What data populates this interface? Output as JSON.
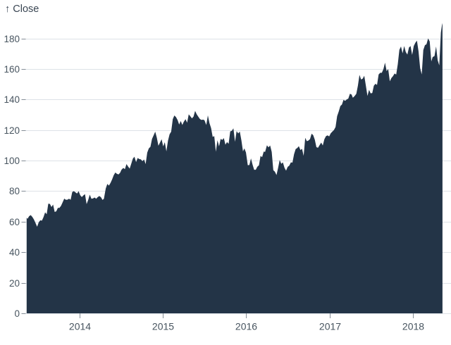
{
  "colors": {
    "background": "#ffffff",
    "area_fill": "#233447",
    "gridline": "#dde2e7",
    "tick_mark": "#848d96",
    "tick_text": "#47545f",
    "title_text": "#3a4653"
  },
  "chart_data": {
    "type": "area",
    "title": "↑ Close",
    "xlabel": "",
    "ylabel": "Close",
    "legend": "none",
    "grid": "horizontal",
    "ylim": [
      0,
      190
    ],
    "y_ticks": [
      0,
      20,
      40,
      60,
      80,
      100,
      120,
      140,
      160,
      180
    ],
    "x_ticks": [
      2014,
      2015,
      2016,
      2017,
      2018
    ],
    "x_domain": [
      "2013-05-13",
      "2018-05-11"
    ],
    "series": [
      {
        "name": "Close",
        "points": [
          [
            "2013-05-13",
            62.6
          ],
          [
            "2013-05-17",
            61.9
          ],
          [
            "2013-05-24",
            63.6
          ],
          [
            "2013-05-31",
            64.3
          ],
          [
            "2013-06-07",
            63.1
          ],
          [
            "2013-06-14",
            61.4
          ],
          [
            "2013-06-21",
            59.1
          ],
          [
            "2013-06-28",
            56.7
          ],
          [
            "2013-07-05",
            59.6
          ],
          [
            "2013-07-12",
            60.9
          ],
          [
            "2013-07-19",
            60.7
          ],
          [
            "2013-07-26",
            63.0
          ],
          [
            "2013-08-02",
            66.1
          ],
          [
            "2013-08-09",
            64.9
          ],
          [
            "2013-08-16",
            71.8
          ],
          [
            "2013-08-23",
            71.6
          ],
          [
            "2013-08-30",
            69.6
          ],
          [
            "2013-09-06",
            71.2
          ],
          [
            "2013-09-13",
            66.4
          ],
          [
            "2013-09-20",
            66.8
          ],
          [
            "2013-09-27",
            69.0
          ],
          [
            "2013-10-04",
            69.0
          ],
          [
            "2013-10-11",
            70.4
          ],
          [
            "2013-10-18",
            72.7
          ],
          [
            "2013-10-25",
            75.1
          ],
          [
            "2013-11-01",
            74.3
          ],
          [
            "2013-11-08",
            74.4
          ],
          [
            "2013-11-15",
            75.0
          ],
          [
            "2013-11-22",
            74.3
          ],
          [
            "2013-11-29",
            79.4
          ],
          [
            "2013-12-06",
            80.0
          ],
          [
            "2013-12-13",
            79.2
          ],
          [
            "2013-12-20",
            78.4
          ],
          [
            "2013-12-27",
            80.0
          ],
          [
            "2014-01-03",
            77.3
          ],
          [
            "2014-01-10",
            76.1
          ],
          [
            "2014-01-17",
            77.2
          ],
          [
            "2014-01-24",
            78.0
          ],
          [
            "2014-01-31",
            71.5
          ],
          [
            "2014-02-07",
            74.2
          ],
          [
            "2014-02-14",
            77.7
          ],
          [
            "2014-02-21",
            75.0
          ],
          [
            "2014-02-28",
            75.2
          ],
          [
            "2014-03-07",
            75.8
          ],
          [
            "2014-03-14",
            75.0
          ],
          [
            "2014-03-21",
            76.1
          ],
          [
            "2014-03-28",
            76.8
          ],
          [
            "2014-04-04",
            76.0
          ],
          [
            "2014-04-11",
            74.2
          ],
          [
            "2014-04-17",
            75.0
          ],
          [
            "2014-04-25",
            81.7
          ],
          [
            "2014-05-02",
            84.7
          ],
          [
            "2014-05-09",
            83.6
          ],
          [
            "2014-05-16",
            85.4
          ],
          [
            "2014-05-23",
            87.7
          ],
          [
            "2014-05-30",
            90.4
          ],
          [
            "2014-06-06",
            92.2
          ],
          [
            "2014-06-13",
            91.3
          ],
          [
            "2014-06-20",
            90.9
          ],
          [
            "2014-06-27",
            92.0
          ],
          [
            "2014-07-03",
            94.0
          ],
          [
            "2014-07-11",
            95.2
          ],
          [
            "2014-07-18",
            94.4
          ],
          [
            "2014-07-25",
            97.7
          ],
          [
            "2014-08-01",
            96.1
          ],
          [
            "2014-08-08",
            94.7
          ],
          [
            "2014-08-15",
            98.0
          ],
          [
            "2014-08-22",
            101.3
          ],
          [
            "2014-08-29",
            102.5
          ],
          [
            "2014-09-05",
            99.0
          ],
          [
            "2014-09-12",
            101.7
          ],
          [
            "2014-09-19",
            101.0
          ],
          [
            "2014-09-26",
            100.8
          ],
          [
            "2014-10-03",
            99.6
          ],
          [
            "2014-10-10",
            100.7
          ],
          [
            "2014-10-17",
            97.7
          ],
          [
            "2014-10-24",
            105.2
          ],
          [
            "2014-10-31",
            108.0
          ],
          [
            "2014-11-07",
            109.0
          ],
          [
            "2014-11-14",
            114.2
          ],
          [
            "2014-11-21",
            116.5
          ],
          [
            "2014-11-28",
            118.9
          ],
          [
            "2014-12-05",
            115.0
          ],
          [
            "2014-12-12",
            109.7
          ],
          [
            "2014-12-19",
            111.8
          ],
          [
            "2014-12-26",
            114.0
          ],
          [
            "2015-01-02",
            109.3
          ],
          [
            "2015-01-09",
            112.0
          ],
          [
            "2015-01-16",
            106.0
          ],
          [
            "2015-01-23",
            113.0
          ],
          [
            "2015-01-30",
            117.2
          ],
          [
            "2015-02-06",
            118.9
          ],
          [
            "2015-02-13",
            127.1
          ],
          [
            "2015-02-20",
            129.5
          ],
          [
            "2015-02-27",
            128.5
          ],
          [
            "2015-03-06",
            126.6
          ],
          [
            "2015-03-13",
            123.6
          ],
          [
            "2015-03-20",
            125.9
          ],
          [
            "2015-03-27",
            123.3
          ],
          [
            "2015-04-02",
            125.3
          ],
          [
            "2015-04-10",
            127.1
          ],
          [
            "2015-04-17",
            124.8
          ],
          [
            "2015-04-24",
            130.3
          ],
          [
            "2015-05-01",
            129.0
          ],
          [
            "2015-05-08",
            127.6
          ],
          [
            "2015-05-15",
            128.8
          ],
          [
            "2015-05-22",
            132.5
          ],
          [
            "2015-05-29",
            130.3
          ],
          [
            "2015-06-05",
            128.7
          ],
          [
            "2015-06-12",
            127.2
          ],
          [
            "2015-06-19",
            126.6
          ],
          [
            "2015-06-26",
            126.8
          ],
          [
            "2015-07-02",
            126.4
          ],
          [
            "2015-07-10",
            123.3
          ],
          [
            "2015-07-17",
            129.6
          ],
          [
            "2015-07-24",
            124.5
          ],
          [
            "2015-07-31",
            121.3
          ],
          [
            "2015-08-07",
            115.5
          ],
          [
            "2015-08-14",
            116.0
          ],
          [
            "2015-08-21",
            105.8
          ],
          [
            "2015-08-28",
            113.3
          ],
          [
            "2015-09-04",
            109.3
          ],
          [
            "2015-09-11",
            114.2
          ],
          [
            "2015-09-18",
            113.5
          ],
          [
            "2015-09-25",
            114.7
          ],
          [
            "2015-10-02",
            110.4
          ],
          [
            "2015-10-09",
            112.1
          ],
          [
            "2015-10-16",
            111.0
          ],
          [
            "2015-10-23",
            119.1
          ],
          [
            "2015-10-30",
            119.5
          ],
          [
            "2015-11-06",
            121.1
          ],
          [
            "2015-11-13",
            112.3
          ],
          [
            "2015-11-20",
            119.3
          ],
          [
            "2015-11-27",
            117.8
          ],
          [
            "2015-12-04",
            119.0
          ],
          [
            "2015-12-11",
            113.2
          ],
          [
            "2015-12-18",
            106.0
          ],
          [
            "2015-12-24",
            108.0
          ],
          [
            "2015-12-31",
            105.3
          ],
          [
            "2016-01-08",
            97.0
          ],
          [
            "2016-01-15",
            97.1
          ],
          [
            "2016-01-22",
            101.4
          ],
          [
            "2016-01-29",
            97.3
          ],
          [
            "2016-02-05",
            94.0
          ],
          [
            "2016-02-12",
            94.0
          ],
          [
            "2016-02-19",
            96.0
          ],
          [
            "2016-02-26",
            96.9
          ],
          [
            "2016-03-04",
            103.0
          ],
          [
            "2016-03-11",
            102.3
          ],
          [
            "2016-03-18",
            105.9
          ],
          [
            "2016-03-24",
            105.7
          ],
          [
            "2016-04-01",
            110.0
          ],
          [
            "2016-04-08",
            108.7
          ],
          [
            "2016-04-15",
            109.9
          ],
          [
            "2016-04-22",
            105.7
          ],
          [
            "2016-04-29",
            93.7
          ],
          [
            "2016-05-06",
            92.7
          ],
          [
            "2016-05-13",
            90.5
          ],
          [
            "2016-05-20",
            95.2
          ],
          [
            "2016-05-27",
            100.4
          ],
          [
            "2016-06-03",
            97.9
          ],
          [
            "2016-06-10",
            98.8
          ],
          [
            "2016-06-17",
            95.3
          ],
          [
            "2016-06-24",
            93.4
          ],
          [
            "2016-07-01",
            95.9
          ],
          [
            "2016-07-08",
            96.7
          ],
          [
            "2016-07-15",
            98.8
          ],
          [
            "2016-07-22",
            98.7
          ],
          [
            "2016-07-29",
            104.2
          ],
          [
            "2016-08-05",
            107.5
          ],
          [
            "2016-08-12",
            108.2
          ],
          [
            "2016-08-19",
            109.4
          ],
          [
            "2016-08-26",
            106.9
          ],
          [
            "2016-09-02",
            107.7
          ],
          [
            "2016-09-09",
            103.1
          ],
          [
            "2016-09-16",
            114.9
          ],
          [
            "2016-09-23",
            112.7
          ],
          [
            "2016-09-30",
            113.1
          ],
          [
            "2016-10-07",
            114.1
          ],
          [
            "2016-10-14",
            117.6
          ],
          [
            "2016-10-21",
            116.6
          ],
          [
            "2016-10-28",
            113.7
          ],
          [
            "2016-11-04",
            108.8
          ],
          [
            "2016-11-11",
            108.4
          ],
          [
            "2016-11-18",
            110.1
          ],
          [
            "2016-11-25",
            111.8
          ],
          [
            "2016-12-02",
            109.9
          ],
          [
            "2016-12-09",
            114.0
          ],
          [
            "2016-12-16",
            116.0
          ],
          [
            "2016-12-23",
            116.5
          ],
          [
            "2016-12-30",
            115.8
          ],
          [
            "2017-01-06",
            117.9
          ],
          [
            "2017-01-13",
            119.0
          ],
          [
            "2017-01-20",
            120.0
          ],
          [
            "2017-01-27",
            122.0
          ],
          [
            "2017-02-03",
            129.1
          ],
          [
            "2017-02-10",
            132.1
          ],
          [
            "2017-02-17",
            135.7
          ],
          [
            "2017-02-24",
            136.7
          ],
          [
            "2017-03-03",
            139.8
          ],
          [
            "2017-03-10",
            139.1
          ],
          [
            "2017-03-17",
            140.0
          ],
          [
            "2017-03-24",
            140.6
          ],
          [
            "2017-03-31",
            143.7
          ],
          [
            "2017-04-07",
            143.3
          ],
          [
            "2017-04-13",
            141.1
          ],
          [
            "2017-04-21",
            142.3
          ],
          [
            "2017-04-28",
            143.7
          ],
          [
            "2017-05-05",
            149.0
          ],
          [
            "2017-05-12",
            156.1
          ],
          [
            "2017-05-19",
            153.1
          ],
          [
            "2017-05-26",
            153.6
          ],
          [
            "2017-06-02",
            155.5
          ],
          [
            "2017-06-09",
            149.0
          ],
          [
            "2017-06-16",
            142.3
          ],
          [
            "2017-06-23",
            146.3
          ],
          [
            "2017-06-30",
            144.0
          ],
          [
            "2017-07-07",
            144.2
          ],
          [
            "2017-07-14",
            149.0
          ],
          [
            "2017-07-21",
            150.3
          ],
          [
            "2017-07-28",
            149.5
          ],
          [
            "2017-08-04",
            156.4
          ],
          [
            "2017-08-11",
            157.5
          ],
          [
            "2017-08-18",
            157.5
          ],
          [
            "2017-08-25",
            159.9
          ],
          [
            "2017-09-01",
            164.1
          ],
          [
            "2017-09-08",
            158.6
          ],
          [
            "2017-09-15",
            159.9
          ],
          [
            "2017-09-22",
            151.9
          ],
          [
            "2017-09-29",
            154.1
          ],
          [
            "2017-10-06",
            155.3
          ],
          [
            "2017-10-13",
            157.0
          ],
          [
            "2017-10-20",
            156.3
          ],
          [
            "2017-10-27",
            163.1
          ],
          [
            "2017-11-03",
            172.5
          ],
          [
            "2017-11-10",
            174.7
          ],
          [
            "2017-11-17",
            170.2
          ],
          [
            "2017-11-24",
            175.0
          ],
          [
            "2017-12-01",
            171.1
          ],
          [
            "2017-12-08",
            169.4
          ],
          [
            "2017-12-15",
            174.0
          ],
          [
            "2017-12-22",
            175.0
          ],
          [
            "2017-12-29",
            169.2
          ],
          [
            "2018-01-05",
            175.0
          ],
          [
            "2018-01-12",
            177.1
          ],
          [
            "2018-01-19",
            178.5
          ],
          [
            "2018-01-26",
            171.5
          ],
          [
            "2018-02-02",
            160.5
          ],
          [
            "2018-02-09",
            156.4
          ],
          [
            "2018-02-16",
            172.4
          ],
          [
            "2018-02-23",
            175.5
          ],
          [
            "2018-03-02",
            176.2
          ],
          [
            "2018-03-09",
            180.0
          ],
          [
            "2018-03-16",
            178.0
          ],
          [
            "2018-03-23",
            164.9
          ],
          [
            "2018-03-29",
            167.8
          ],
          [
            "2018-04-06",
            168.4
          ],
          [
            "2018-04-13",
            174.7
          ],
          [
            "2018-04-20",
            165.7
          ],
          [
            "2018-04-27",
            162.3
          ],
          [
            "2018-05-04",
            183.8
          ],
          [
            "2018-05-10",
            190.0
          ],
          [
            "2018-05-11",
            188.6
          ]
        ]
      }
    ]
  }
}
